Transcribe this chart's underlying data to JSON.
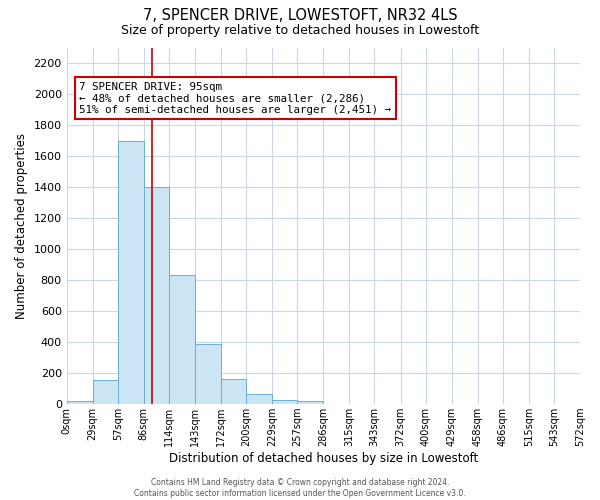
{
  "title": "7, SPENCER DRIVE, LOWESTOFT, NR32 4LS",
  "subtitle": "Size of property relative to detached houses in Lowestoft",
  "xlabel": "Distribution of detached houses by size in Lowestoft",
  "ylabel": "Number of detached properties",
  "bar_edges": [
    0,
    29,
    57,
    86,
    114,
    143,
    172,
    200,
    229,
    257,
    286,
    315,
    343,
    372,
    400,
    429,
    458,
    486,
    515,
    543,
    572
  ],
  "bar_heights": [
    20,
    155,
    1700,
    1400,
    830,
    390,
    160,
    65,
    30,
    20,
    0,
    0,
    0,
    0,
    0,
    0,
    0,
    0,
    0,
    0
  ],
  "bar_color": "#cce5f5",
  "bar_edgecolor": "#6baed6",
  "vline_x": 95,
  "vline_color": "#cc0000",
  "annotation_title": "7 SPENCER DRIVE: 95sqm",
  "annotation_line1": "← 48% of detached houses are smaller (2,286)",
  "annotation_line2": "51% of semi-detached houses are larger (2,451) →",
  "annotation_box_color": "#cc0000",
  "ylim": [
    0,
    2300
  ],
  "yticks": [
    0,
    200,
    400,
    600,
    800,
    1000,
    1200,
    1400,
    1600,
    1800,
    2000,
    2200
  ],
  "tick_labels": [
    "0sqm",
    "29sqm",
    "57sqm",
    "86sqm",
    "114sqm",
    "143sqm",
    "172sqm",
    "200sqm",
    "229sqm",
    "257sqm",
    "286sqm",
    "315sqm",
    "343sqm",
    "372sqm",
    "400sqm",
    "429sqm",
    "458sqm",
    "486sqm",
    "515sqm",
    "543sqm",
    "572sqm"
  ],
  "footer1": "Contains HM Land Registry data © Crown copyright and database right 2024.",
  "footer2": "Contains public sector information licensed under the Open Government Licence v3.0.",
  "bg_color": "#ffffff",
  "grid_color": "#c8d8e8"
}
